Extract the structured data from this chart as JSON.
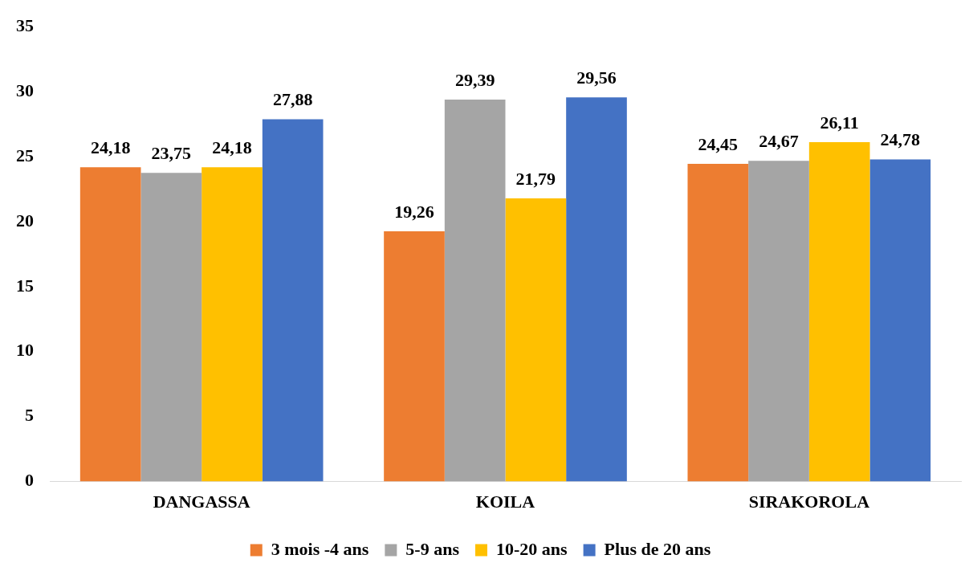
{
  "chart_data": {
    "type": "bar",
    "categories": [
      "DANGASSA",
      "KOILA",
      "SIRAKOROLA"
    ],
    "series": [
      {
        "name": "3 mois -4 ans",
        "color": "#ed7d31",
        "values": [
          24.18,
          19.26,
          24.45
        ],
        "value_labels": [
          "24,18",
          "19,26",
          "24,45"
        ]
      },
      {
        "name": "5-9 ans",
        "color": "#a5a5a5",
        "values": [
          23.75,
          29.39,
          24.67
        ],
        "value_labels": [
          "23,75",
          "29,39",
          "24,67"
        ]
      },
      {
        "name": "10-20 ans",
        "color": "#ffc000",
        "values": [
          24.18,
          21.79,
          26.11
        ],
        "value_labels": [
          "24,18",
          "21,79",
          "26,11"
        ]
      },
      {
        "name": "Plus de 20 ans",
        "color": "#4472c4",
        "values": [
          27.88,
          29.56,
          24.78
        ],
        "value_labels": [
          "27,88",
          "29,56",
          "24,78"
        ]
      }
    ],
    "ylim": [
      0,
      35
    ],
    "yticks": [
      0,
      5,
      10,
      15,
      20,
      25,
      30,
      35
    ],
    "grid": false,
    "legend": "bottom"
  }
}
